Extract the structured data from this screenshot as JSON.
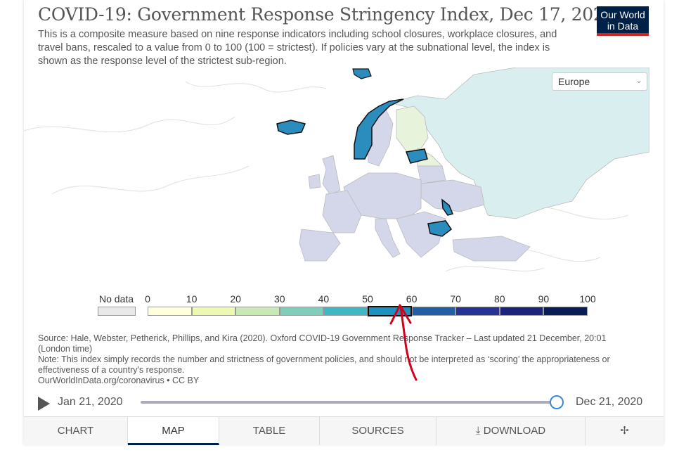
{
  "header": {
    "title": "COVID-19: Government Response Stringency Index, Dec 17, 2020",
    "subtitle": "This is a composite measure based on nine response indicators including school closures, workplace closures, and travel bans, rescaled to a value from 0 to 100 (100 = strictest). If policies vary at the subnational level, the index is shown as the response level of the strictest sub-region.",
    "logo_line1": "Our World",
    "logo_line2": "in Data"
  },
  "region_select": {
    "value": "Europe",
    "icon": "chevron-down-icon"
  },
  "legend": {
    "nodata_label": "No data",
    "ticks": [
      "0",
      "10",
      "20",
      "30",
      "40",
      "50",
      "60",
      "70",
      "80",
      "90",
      "100"
    ],
    "bins": [
      {
        "from": 0,
        "to": 10,
        "color": "#ffffd9"
      },
      {
        "from": 10,
        "to": 20,
        "color": "#edf8b1"
      },
      {
        "from": 20,
        "to": 30,
        "color": "#c7e9b4"
      },
      {
        "from": 30,
        "to": 40,
        "color": "#7fcdbb"
      },
      {
        "from": 40,
        "to": 50,
        "color": "#41b6c4"
      },
      {
        "from": 50,
        "to": 60,
        "color": "#1d91c0"
      },
      {
        "from": 60,
        "to": 70,
        "color": "#225ea8"
      },
      {
        "from": 70,
        "to": 80,
        "color": "#253494"
      },
      {
        "from": 80,
        "to": 90,
        "color": "#1a237e"
      },
      {
        "from": 90,
        "to": 100,
        "color": "#081d58"
      }
    ],
    "highlighted_bin": "50-60"
  },
  "sources": {
    "line1": "Source: Hale, Webster, Petherick, Phillips, and Kira (2020). Oxford COVID-19 Government Response Tracker – Last updated 21 December, 20:01 (London time)",
    "line2": "Note: This index simply records the number and strictness of government policies, and should not be interpreted as ‘scoring’ the appropriateness or effectiveness of a country's response.",
    "line3": "OurWorldInData.org/coronavirus • CC BY"
  },
  "timeline": {
    "start": "Jan 21, 2020",
    "end": "Dec 21, 2020",
    "play_icon": "play-icon"
  },
  "tabs": [
    {
      "label": "CHART",
      "active": false
    },
    {
      "label": "MAP",
      "active": true
    },
    {
      "label": "TABLE",
      "active": false
    },
    {
      "label": "SOURCES",
      "active": false
    },
    {
      "label": "DOWNLOAD",
      "active": false,
      "icon": "download-icon"
    },
    {
      "label": "",
      "active": false,
      "icon": "share-icon"
    }
  ],
  "colors": {
    "highlight": "#2b8cbe",
    "others": "#d4d6ea",
    "russia": "#d9eeee",
    "annotation": "#d0021b"
  }
}
